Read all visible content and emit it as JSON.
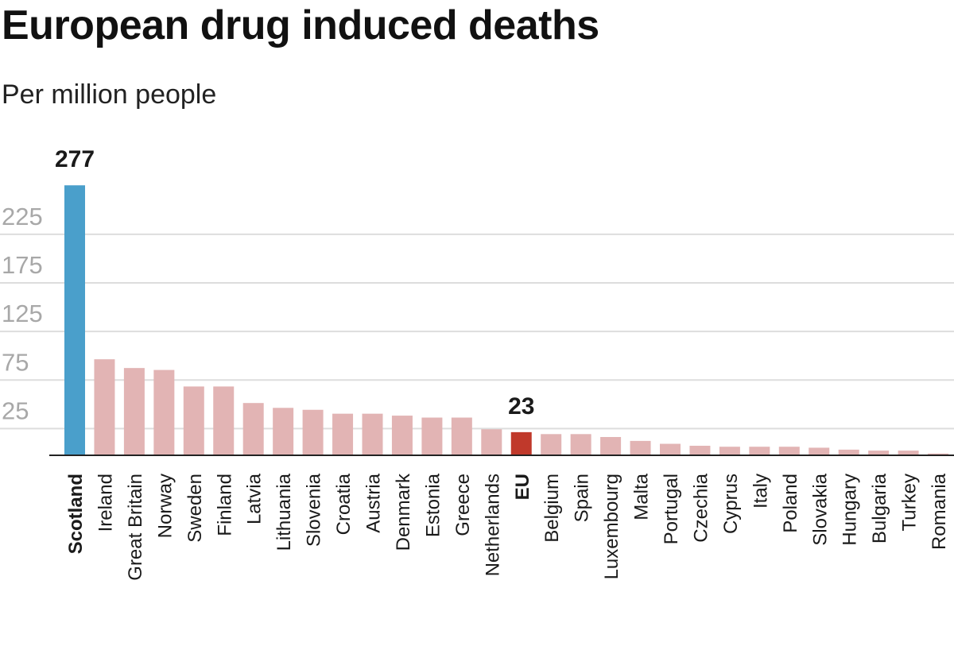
{
  "chart_data": {
    "type": "bar",
    "title": "European drug induced deaths",
    "subtitle": "Per million people",
    "xlabel": "",
    "ylabel": "",
    "ylim": [
      0,
      277
    ],
    "yticks": [
      25,
      75,
      125,
      175,
      225
    ],
    "grid": true,
    "categories": [
      "Scotland",
      "Ireland",
      "Great Britain",
      "Norway",
      "Sweden",
      "Finland",
      "Latvia",
      "Lithuania",
      "Slovenia",
      "Croatia",
      "Austria",
      "Denmark",
      "Estonia",
      "Greece",
      "Netherlands",
      "EU",
      "Belgium",
      "Spain",
      "Luxembourg",
      "Malta",
      "Portugal",
      "Czechia",
      "Cyprus",
      "Italy",
      "Poland",
      "Slovakia",
      "Hungary",
      "Bulgaria",
      "Turkey",
      "Romania"
    ],
    "values": [
      277,
      98,
      89,
      87,
      70,
      70,
      53,
      48,
      46,
      42,
      42,
      40,
      38,
      38,
      26,
      23,
      21,
      21,
      18,
      14,
      11,
      9,
      8,
      8,
      8,
      7,
      5,
      4,
      4,
      1
    ],
    "highlighted": [
      "Scotland",
      "EU"
    ],
    "data_labels": [
      {
        "category": "Scotland",
        "text": "277"
      },
      {
        "category": "EU",
        "text": "23"
      }
    ],
    "colors": {
      "highlight": "#4a9fcb",
      "eu": "#c0392b",
      "default": "#e2b4b4",
      "grid": "#dddddd",
      "axis": "#222222",
      "tick_text": "#a8a8a8",
      "label_text": "#1a1a1a"
    }
  }
}
